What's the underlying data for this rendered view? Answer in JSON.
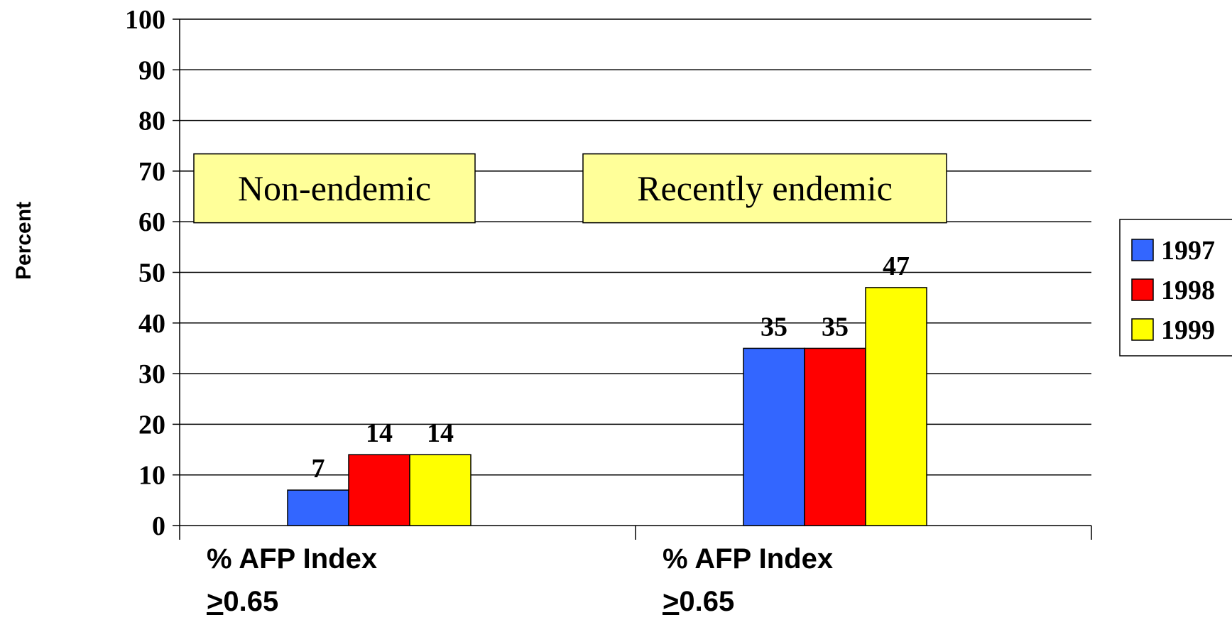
{
  "chart_data": {
    "type": "bar",
    "ylabel": "Percent",
    "ylim": [
      0,
      100
    ],
    "yticks": [
      "0",
      "10",
      "20",
      "30",
      "40",
      "50",
      "60",
      "70",
      "80",
      "90",
      "100"
    ],
    "grid": true,
    "legend_position": "right",
    "categories": [
      {
        "line1": "% AFP Index",
        "line2_prefix": ">",
        "line2_rest": "0.65"
      },
      {
        "line1": "% AFP Index",
        "line2_prefix": ">",
        "line2_rest": "0.65"
      }
    ],
    "series": [
      {
        "name": "1997",
        "color": "#3366FF",
        "values": [
          7,
          35
        ],
        "labels": [
          "7",
          "35"
        ]
      },
      {
        "name": "1998",
        "color": "#FF0000",
        "values": [
          14,
          35
        ],
        "labels": [
          "14",
          "35"
        ]
      },
      {
        "name": "1999",
        "color": "#FFFF00",
        "values": [
          14,
          47
        ],
        "labels": [
          "14",
          "47"
        ]
      }
    ],
    "annotations": [
      {
        "text": "Non-endemic",
        "category_index": 0,
        "background": "#FFFF99"
      },
      {
        "text": "Recently endemic",
        "category_index": 1,
        "background": "#FFFF99"
      }
    ]
  }
}
